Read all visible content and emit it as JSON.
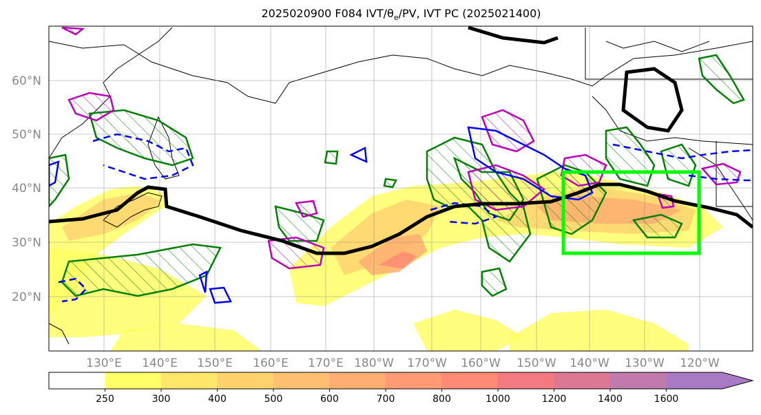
{
  "title_main": "2025020900 F084 IVT/",
  "title_theta": "θ",
  "title_sub": "e",
  "title_rest": "/PV, IVT PC (2025021400)",
  "lat_labels": [
    "20°N",
    "30°N",
    "40°N",
    "50°N",
    "60°N"
  ],
  "lon_labels": [
    "130°E",
    "140°E",
    "150°E",
    "160°E",
    "170°E",
    "180°W",
    "170°W",
    "160°W",
    "150°W",
    "140°W",
    "130°W",
    "120°W"
  ],
  "colorbar": {
    "ticks": [
      "250",
      "300",
      "400",
      "500",
      "600",
      "700",
      "800",
      "1000",
      "1200",
      "1400",
      "1600"
    ],
    "colors": [
      "#ffff66",
      "#ffe76a",
      "#ffd26e",
      "#ffbf70",
      "#ffae72",
      "#ff9a74",
      "#ff8a76",
      "#f27a80",
      "#dc7894",
      "#c07aac",
      "#a77ac3"
    ]
  },
  "colors": {
    "ivt_pc": "#000000",
    "theta_e": "#008000",
    "pv_positive": "#bb00bb",
    "pv_negative": "#0000ff",
    "target_box": "#00ff00"
  }
}
